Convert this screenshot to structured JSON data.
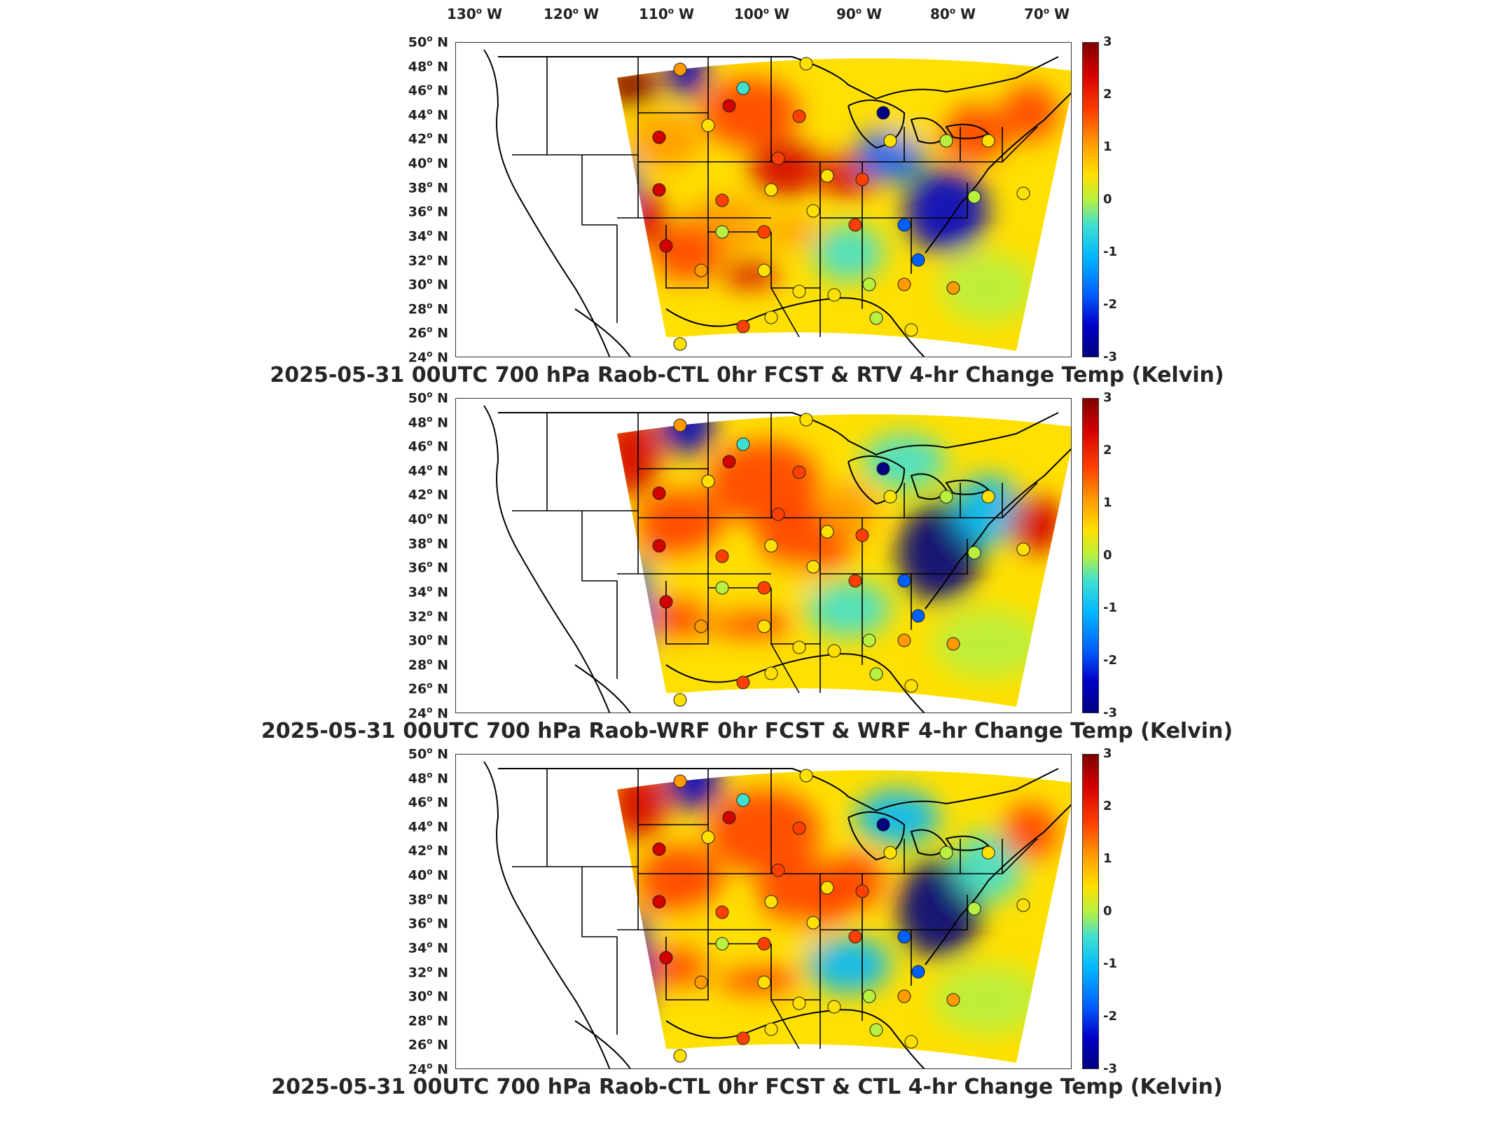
{
  "longitude_labels": [
    "130",
    "120",
    "110",
    "100",
    "90",
    "80",
    "70"
  ],
  "longitude_hemisphere": "W",
  "latitude_labels": [
    "50",
    "48",
    "46",
    "44",
    "42",
    "40",
    "38",
    "36",
    "34",
    "32",
    "30",
    "28",
    "26",
    "24"
  ],
  "latitude_hemisphere": "N",
  "degree_symbol": "o",
  "colorbar": {
    "ticks": [
      "3",
      "2",
      "1",
      "0",
      "-1",
      "-2",
      "-3"
    ],
    "range": [
      -3,
      3
    ],
    "colormap": "jet",
    "colors": [
      "#800000",
      "#d40000",
      "#ff4000",
      "#ff9a00",
      "#ffe000",
      "#b8f040",
      "#40e0d0",
      "#00b8ff",
      "#0060ff",
      "#0000c8",
      "#000080"
    ]
  },
  "panels": [
    {
      "title": "2025-05-31 00UTC 700 hPa Raob-CTL 0hr FCST & RTV 4-hr Change Temp (Kelvin)",
      "field": "rtv"
    },
    {
      "title": "2025-05-31 00UTC 700 hPa Raob-WRF 0hr FCST & WRF 4-hr Change Temp (Kelvin)",
      "field": "wrf"
    },
    {
      "title": "2025-05-31 00UTC 700 hPa Raob-CTL 0hr FCST & CTL 4-hr Change Temp (Kelvin)",
      "field": "ctl"
    }
  ]
}
